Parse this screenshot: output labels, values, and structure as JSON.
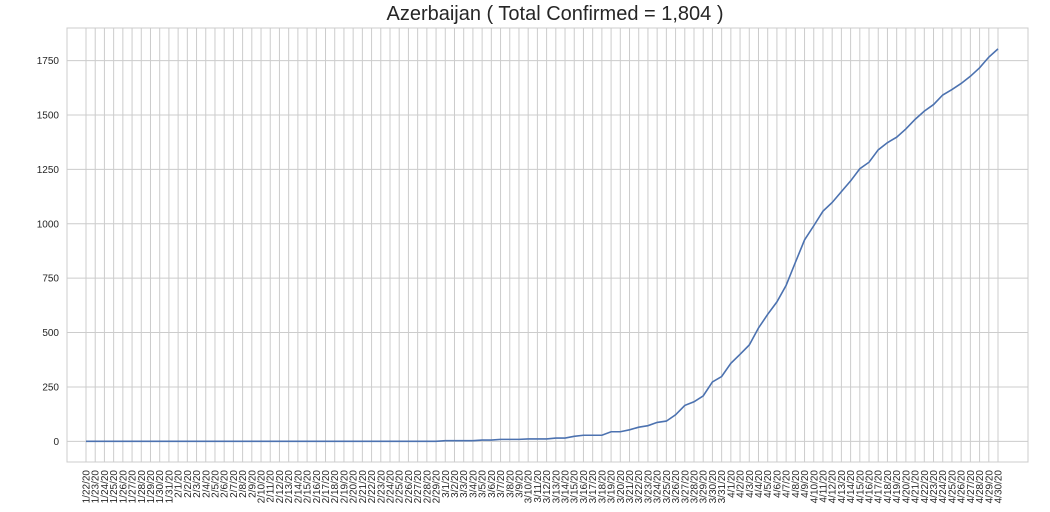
{
  "chart_data": {
    "type": "line",
    "title": "Azerbaijan ( Total Confirmed = 1,804 )",
    "xlabel": "",
    "ylabel": "",
    "ylim": [
      -95,
      1900
    ],
    "yticks": [
      0,
      250,
      500,
      750,
      1000,
      1250,
      1500,
      1750
    ],
    "grid": true,
    "line_color": "#4c72b0",
    "grid_color": "#cccccc",
    "categories": [
      "1/22/20",
      "1/23/20",
      "1/24/20",
      "1/25/20",
      "1/26/20",
      "1/27/20",
      "1/28/20",
      "1/29/20",
      "1/30/20",
      "1/31/20",
      "2/1/20",
      "2/2/20",
      "2/3/20",
      "2/4/20",
      "2/5/20",
      "2/6/20",
      "2/7/20",
      "2/8/20",
      "2/9/20",
      "2/10/20",
      "2/11/20",
      "2/12/20",
      "2/13/20",
      "2/14/20",
      "2/15/20",
      "2/16/20",
      "2/17/20",
      "2/18/20",
      "2/19/20",
      "2/20/20",
      "2/21/20",
      "2/22/20",
      "2/23/20",
      "2/24/20",
      "2/25/20",
      "2/26/20",
      "2/27/20",
      "2/28/20",
      "2/29/20",
      "3/1/20",
      "3/2/20",
      "3/3/20",
      "3/4/20",
      "3/5/20",
      "3/6/20",
      "3/7/20",
      "3/8/20",
      "3/9/20",
      "3/10/20",
      "3/11/20",
      "3/12/20",
      "3/13/20",
      "3/14/20",
      "3/15/20",
      "3/16/20",
      "3/17/20",
      "3/18/20",
      "3/19/20",
      "3/20/20",
      "3/21/20",
      "3/22/20",
      "3/23/20",
      "3/24/20",
      "3/25/20",
      "3/26/20",
      "3/27/20",
      "3/28/20",
      "3/29/20",
      "3/30/20",
      "3/31/20",
      "4/1/20",
      "4/2/20",
      "4/3/20",
      "4/4/20",
      "4/5/20",
      "4/6/20",
      "4/7/20",
      "4/8/20",
      "4/9/20",
      "4/10/20",
      "4/11/20",
      "4/12/20",
      "4/13/20",
      "4/14/20",
      "4/15/20",
      "4/16/20",
      "4/17/20",
      "4/18/20",
      "4/19/20",
      "4/20/20",
      "4/21/20",
      "4/22/20",
      "4/23/20",
      "4/24/20",
      "4/25/20",
      "4/26/20",
      "4/27/20",
      "4/28/20",
      "4/29/20",
      "4/30/20"
    ],
    "values": [
      0,
      0,
      0,
      0,
      0,
      0,
      0,
      0,
      0,
      0,
      0,
      0,
      0,
      0,
      0,
      0,
      0,
      0,
      0,
      0,
      0,
      0,
      0,
      0,
      0,
      0,
      0,
      0,
      0,
      0,
      0,
      0,
      0,
      0,
      0,
      0,
      0,
      0,
      0,
      3,
      3,
      3,
      3,
      6,
      6,
      9,
      9,
      9,
      11,
      11,
      11,
      15,
      15,
      23,
      28,
      28,
      28,
      44,
      44,
      53,
      65,
      72,
      87,
      93,
      122,
      165,
      182,
      209,
      273,
      298,
      359,
      400,
      443,
      521,
      584,
      641,
      717,
      822,
      926,
      991,
      1058,
      1098,
      1148,
      1197,
      1253,
      1283,
      1340,
      1373,
      1398,
      1436,
      1480,
      1518,
      1548,
      1592,
      1617,
      1645,
      1678,
      1717,
      1766,
      1804
    ]
  }
}
